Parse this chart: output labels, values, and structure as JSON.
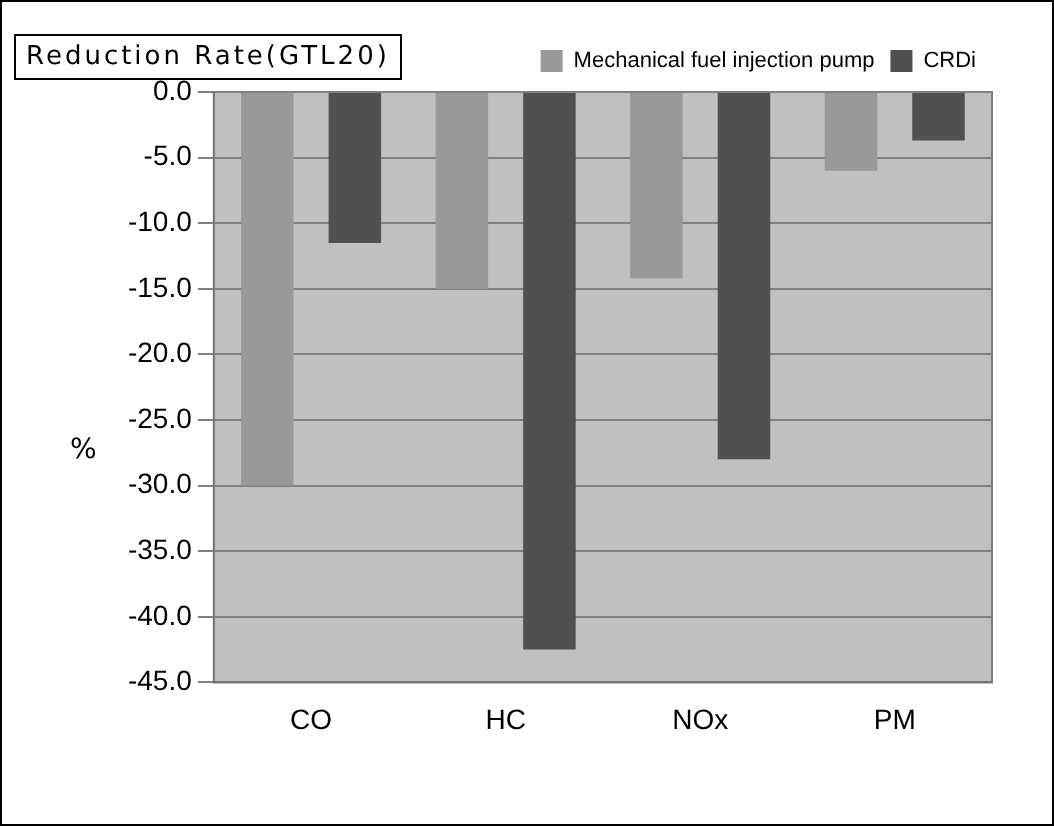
{
  "chart_data": {
    "type": "bar",
    "title": "Reduction Rate(GTL20)",
    "ylabel": "%",
    "categories": [
      "CO",
      "HC",
      "NOx",
      "PM"
    ],
    "series": [
      {
        "name": "Mechanical fuel injection pump",
        "color": "#999999",
        "values": [
          -30.0,
          -15.0,
          -14.2,
          -6.0
        ]
      },
      {
        "name": "CRDi",
        "color": "#505050",
        "values": [
          -11.5,
          -42.5,
          -28.0,
          -3.7
        ]
      }
    ],
    "ylim": [
      -45,
      0
    ],
    "yticks": [
      {
        "value": 0,
        "label": "0.0"
      },
      {
        "value": -5,
        "label": "-5.0"
      },
      {
        "value": -10,
        "label": "-10.0"
      },
      {
        "value": -15,
        "label": "-15.0"
      },
      {
        "value": -20,
        "label": "-20.0"
      },
      {
        "value": -25,
        "label": "-25.0"
      },
      {
        "value": -30,
        "label": "-30.0"
      },
      {
        "value": -35,
        "label": "-35.0"
      },
      {
        "value": -40,
        "label": "-40.0"
      },
      {
        "value": -45,
        "label": "-45.0"
      }
    ],
    "grid": "y",
    "legend": "top right"
  }
}
